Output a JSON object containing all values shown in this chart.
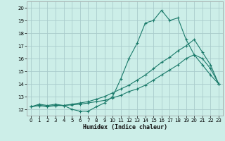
{
  "xlabel": "Humidex (Indice chaleur)",
  "bg_color": "#cceee8",
  "grid_color": "#aacccc",
  "line_color": "#1a7a6a",
  "xlim": [
    -0.5,
    23.5
  ],
  "ylim": [
    11.5,
    20.5
  ],
  "xticks": [
    0,
    1,
    2,
    3,
    4,
    5,
    6,
    7,
    8,
    9,
    10,
    11,
    12,
    13,
    14,
    15,
    16,
    17,
    18,
    19,
    20,
    21,
    22,
    23
  ],
  "yticks": [
    12,
    13,
    14,
    15,
    16,
    17,
    18,
    19,
    20
  ],
  "line1_x": [
    0,
    1,
    2,
    3,
    4,
    5,
    6,
    7,
    8,
    9,
    10,
    11,
    12,
    13,
    14,
    15,
    16,
    17,
    18,
    19,
    20,
    21,
    22,
    23
  ],
  "line1_y": [
    12.2,
    12.4,
    12.3,
    12.4,
    12.3,
    12.0,
    11.85,
    11.85,
    12.2,
    12.5,
    13.0,
    14.4,
    16.0,
    17.2,
    18.8,
    19.0,
    19.8,
    19.0,
    19.2,
    17.5,
    16.3,
    15.5,
    14.7,
    14.0
  ],
  "line2_x": [
    0,
    1,
    2,
    3,
    4,
    5,
    6,
    7,
    8,
    9,
    10,
    11,
    12,
    13,
    14,
    15,
    16,
    17,
    18,
    19,
    20,
    21,
    22,
    23
  ],
  "line2_y": [
    12.2,
    12.3,
    12.2,
    12.3,
    12.3,
    12.35,
    12.4,
    12.5,
    12.6,
    12.7,
    12.9,
    13.1,
    13.4,
    13.6,
    13.9,
    14.3,
    14.7,
    15.1,
    15.5,
    16.0,
    16.3,
    16.0,
    15.2,
    14.0
  ],
  "line3_x": [
    0,
    1,
    2,
    3,
    4,
    5,
    6,
    7,
    8,
    9,
    10,
    11,
    12,
    13,
    14,
    15,
    16,
    17,
    18,
    19,
    20,
    21,
    22,
    23
  ],
  "line3_y": [
    12.2,
    12.3,
    12.25,
    12.3,
    12.3,
    12.4,
    12.5,
    12.6,
    12.8,
    13.0,
    13.3,
    13.6,
    13.9,
    14.3,
    14.7,
    15.2,
    15.7,
    16.1,
    16.6,
    17.0,
    17.5,
    16.5,
    15.5,
    14.0
  ]
}
